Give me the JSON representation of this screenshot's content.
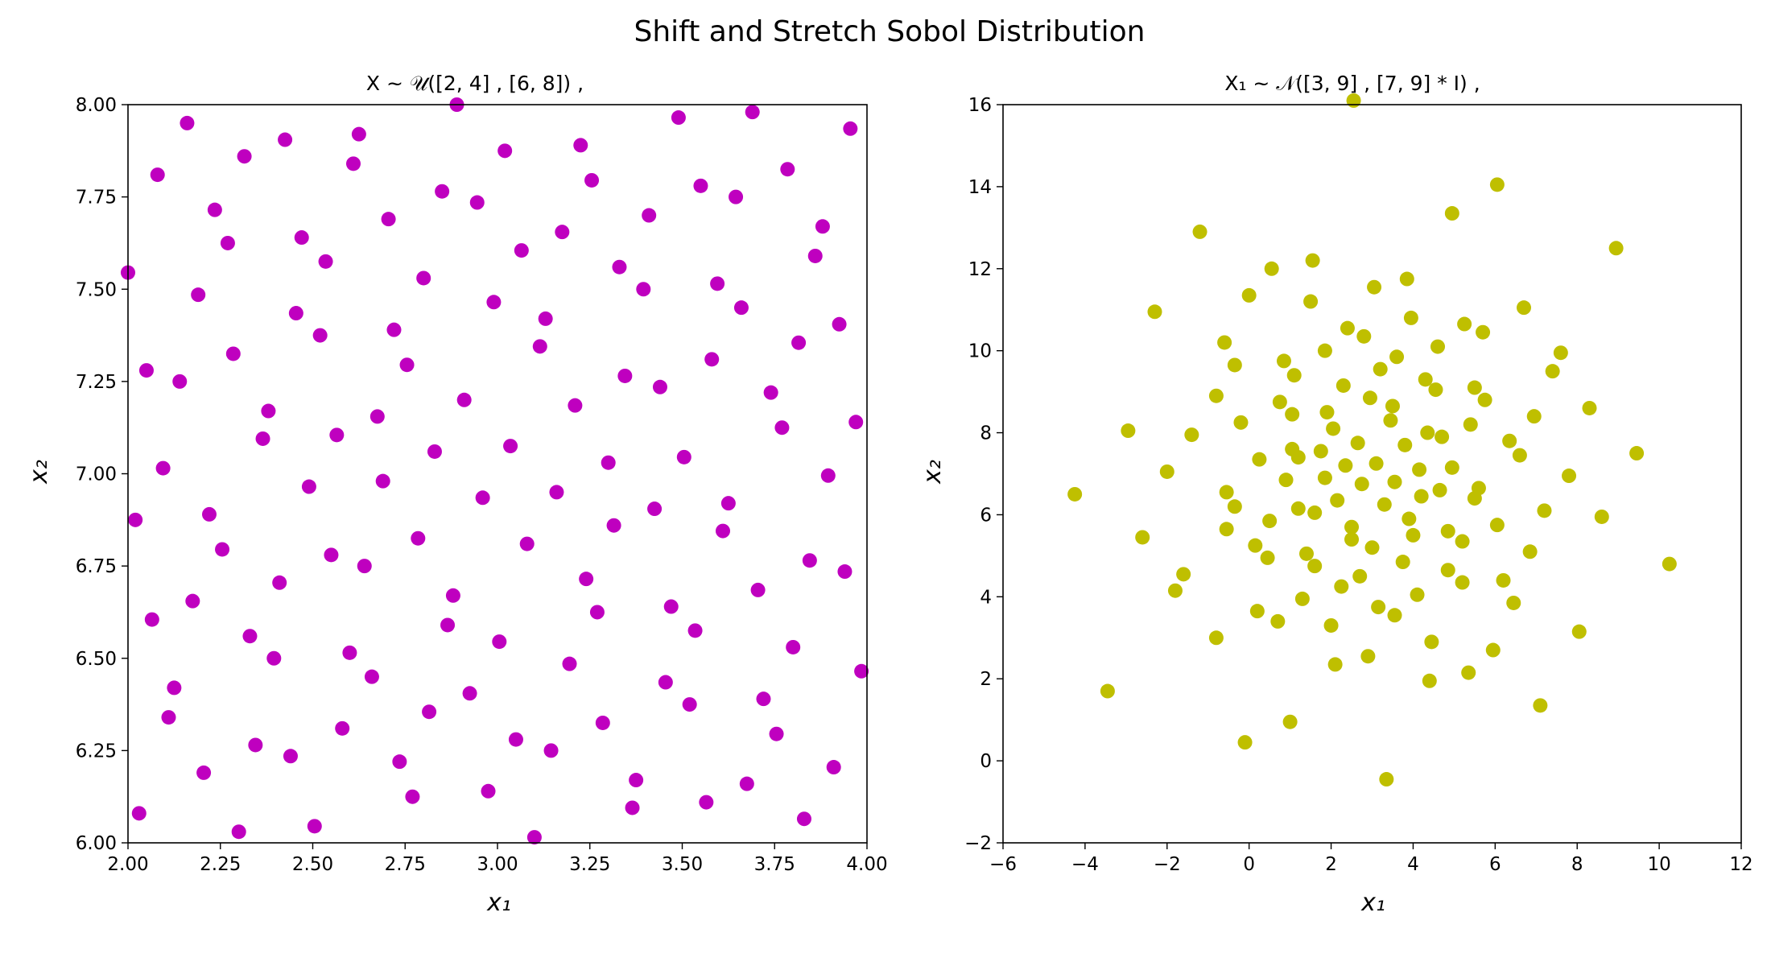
{
  "figure": {
    "suptitle": "Shift and Stretch Sobol Distribution"
  },
  "chart_data": [
    {
      "type": "scatter",
      "title": "X ~ 𝒰([2, 4] , [6, 8])        ,",
      "xlabel": "x₁",
      "ylabel": "x₂",
      "xlim": [
        2.0,
        4.0
      ],
      "ylim": [
        6.0,
        8.0
      ],
      "xticks": [
        "2.00",
        "2.25",
        "2.50",
        "2.75",
        "3.00",
        "3.25",
        "3.50",
        "3.75",
        "4.00"
      ],
      "yticks": [
        "6.00",
        "6.25",
        "6.50",
        "6.75",
        "7.00",
        "7.25",
        "7.50",
        "7.75",
        "8.00"
      ],
      "grid": false,
      "color": "#bf00bf",
      "points": [
        [
          2.0,
          7.545
        ],
        [
          2.02,
          6.875
        ],
        [
          2.03,
          6.08
        ],
        [
          2.05,
          7.28
        ],
        [
          2.065,
          6.605
        ],
        [
          2.08,
          7.81
        ],
        [
          2.095,
          7.015
        ],
        [
          2.11,
          6.34
        ],
        [
          2.125,
          6.42
        ],
        [
          2.14,
          7.25
        ],
        [
          2.16,
          7.95
        ],
        [
          2.175,
          6.655
        ],
        [
          2.19,
          7.485
        ],
        [
          2.205,
          6.19
        ],
        [
          2.22,
          6.89
        ],
        [
          2.235,
          7.715
        ],
        [
          2.255,
          6.795
        ],
        [
          2.27,
          7.625
        ],
        [
          2.285,
          7.325
        ],
        [
          2.3,
          6.03
        ],
        [
          2.315,
          7.86
        ],
        [
          2.33,
          6.56
        ],
        [
          2.345,
          6.265
        ],
        [
          2.365,
          7.095
        ],
        [
          2.38,
          7.17
        ],
        [
          2.395,
          6.5
        ],
        [
          2.41,
          6.705
        ],
        [
          2.425,
          7.905
        ],
        [
          2.44,
          6.235
        ],
        [
          2.455,
          7.435
        ],
        [
          2.47,
          7.64
        ],
        [
          2.49,
          6.965
        ],
        [
          2.505,
          6.045
        ],
        [
          2.52,
          7.375
        ],
        [
          2.535,
          7.575
        ],
        [
          2.55,
          6.78
        ],
        [
          2.565,
          7.105
        ],
        [
          2.58,
          6.31
        ],
        [
          2.6,
          6.515
        ],
        [
          2.61,
          7.84
        ],
        [
          2.625,
          7.92
        ],
        [
          2.64,
          6.75
        ],
        [
          2.66,
          6.45
        ],
        [
          2.675,
          7.155
        ],
        [
          2.69,
          6.98
        ],
        [
          2.705,
          7.69
        ],
        [
          2.72,
          7.39
        ],
        [
          2.735,
          6.22
        ],
        [
          2.755,
          7.295
        ],
        [
          2.77,
          6.125
        ],
        [
          2.785,
          6.825
        ],
        [
          2.8,
          7.53
        ],
        [
          2.815,
          6.355
        ],
        [
          2.83,
          7.06
        ],
        [
          2.85,
          7.765
        ],
        [
          2.865,
          6.59
        ],
        [
          2.88,
          6.67
        ],
        [
          2.89,
          8.0
        ],
        [
          2.91,
          7.2
        ],
        [
          2.925,
          6.405
        ],
        [
          2.945,
          7.735
        ],
        [
          2.96,
          6.935
        ],
        [
          2.975,
          6.14
        ],
        [
          2.99,
          7.465
        ],
        [
          3.005,
          6.545
        ],
        [
          3.02,
          7.875
        ],
        [
          3.035,
          7.075
        ],
        [
          3.05,
          6.28
        ],
        [
          3.065,
          7.605
        ],
        [
          3.08,
          6.81
        ],
        [
          3.1,
          6.015
        ],
        [
          3.115,
          7.345
        ],
        [
          3.13,
          7.42
        ],
        [
          3.145,
          6.25
        ],
        [
          3.16,
          6.95
        ],
        [
          3.175,
          7.655
        ],
        [
          3.195,
          6.485
        ],
        [
          3.21,
          7.185
        ],
        [
          3.225,
          7.89
        ],
        [
          3.24,
          6.715
        ],
        [
          3.255,
          7.795
        ],
        [
          3.27,
          6.625
        ],
        [
          3.285,
          6.325
        ],
        [
          3.3,
          7.03
        ],
        [
          3.315,
          6.86
        ],
        [
          3.33,
          7.56
        ],
        [
          3.345,
          7.265
        ],
        [
          3.365,
          6.095
        ],
        [
          3.375,
          6.17
        ],
        [
          3.395,
          7.5
        ],
        [
          3.41,
          7.7
        ],
        [
          3.425,
          6.905
        ],
        [
          3.44,
          7.235
        ],
        [
          3.455,
          6.435
        ],
        [
          3.47,
          6.64
        ],
        [
          3.49,
          7.965
        ],
        [
          3.505,
          7.045
        ],
        [
          3.52,
          6.375
        ],
        [
          3.535,
          6.575
        ],
        [
          3.55,
          7.78
        ],
        [
          3.565,
          6.11
        ],
        [
          3.58,
          7.31
        ],
        [
          3.595,
          7.515
        ],
        [
          3.61,
          6.845
        ],
        [
          3.625,
          6.92
        ],
        [
          3.645,
          7.75
        ],
        [
          3.66,
          7.45
        ],
        [
          3.675,
          6.16
        ],
        [
          3.69,
          7.98
        ],
        [
          3.705,
          6.685
        ],
        [
          3.72,
          6.39
        ],
        [
          3.74,
          7.22
        ],
        [
          3.755,
          6.295
        ],
        [
          3.77,
          7.125
        ],
        [
          3.785,
          7.825
        ],
        [
          3.8,
          6.53
        ],
        [
          3.815,
          7.355
        ],
        [
          3.83,
          6.065
        ],
        [
          3.845,
          6.765
        ],
        [
          3.86,
          7.59
        ],
        [
          3.88,
          7.67
        ],
        [
          3.895,
          6.995
        ],
        [
          3.91,
          6.205
        ],
        [
          3.925,
          7.405
        ],
        [
          3.94,
          6.735
        ],
        [
          3.955,
          7.935
        ],
        [
          3.97,
          7.14
        ],
        [
          3.985,
          6.465
        ]
      ]
    },
    {
      "type": "scatter",
      "title": "X₁ ~ 𝒩([3, 9] , [7, 9] * I)    ,",
      "xlabel": "x₁",
      "ylabel": "x₂",
      "xlim": [
        -6,
        12
      ],
      "ylim": [
        -2,
        16
      ],
      "xticks": [
        "−6",
        "−4",
        "−2",
        "0",
        "2",
        "4",
        "6",
        "8",
        "10",
        "12"
      ],
      "yticks": [
        "−2",
        "0",
        "2",
        "4",
        "6",
        "8",
        "10",
        "12",
        "14",
        "16"
      ],
      "grid": false,
      "color": "#bfbf00",
      "points": [
        [
          2.55,
          16.1
        ],
        [
          6.05,
          14.05
        ],
        [
          4.95,
          13.35
        ],
        [
          -1.2,
          12.9
        ],
        [
          8.95,
          12.5
        ],
        [
          1.55,
          12.2
        ],
        [
          0.55,
          12.0
        ],
        [
          3.85,
          11.75
        ],
        [
          3.05,
          11.55
        ],
        [
          -2.3,
          10.95
        ],
        [
          0.0,
          11.35
        ],
        [
          1.5,
          11.2
        ],
        [
          6.7,
          11.05
        ],
        [
          3.95,
          10.8
        ],
        [
          5.25,
          10.65
        ],
        [
          2.4,
          10.55
        ],
        [
          5.7,
          10.45
        ],
        [
          2.8,
          10.35
        ],
        [
          -0.6,
          10.2
        ],
        [
          4.6,
          10.1
        ],
        [
          1.85,
          10.0
        ],
        [
          7.6,
          9.95
        ],
        [
          3.6,
          9.85
        ],
        [
          0.85,
          9.75
        ],
        [
          -0.35,
          9.65
        ],
        [
          3.2,
          9.55
        ],
        [
          7.4,
          9.5
        ],
        [
          1.1,
          9.4
        ],
        [
          4.3,
          9.3
        ],
        [
          2.3,
          9.15
        ],
        [
          5.5,
          9.1
        ],
        [
          4.55,
          9.05
        ],
        [
          -0.8,
          8.9
        ],
        [
          2.95,
          8.85
        ],
        [
          5.75,
          8.8
        ],
        [
          0.75,
          8.75
        ],
        [
          3.5,
          8.65
        ],
        [
          8.3,
          8.6
        ],
        [
          1.9,
          8.5
        ],
        [
          1.05,
          8.45
        ],
        [
          6.95,
          8.4
        ],
        [
          3.45,
          8.3
        ],
        [
          -0.2,
          8.25
        ],
        [
          5.4,
          8.2
        ],
        [
          2.05,
          8.1
        ],
        [
          -2.95,
          8.05
        ],
        [
          4.35,
          8.0
        ],
        [
          -1.4,
          7.95
        ],
        [
          4.7,
          7.9
        ],
        [
          6.35,
          7.8
        ],
        [
          2.65,
          7.75
        ],
        [
          3.8,
          7.7
        ],
        [
          1.05,
          7.6
        ],
        [
          1.75,
          7.55
        ],
        [
          9.45,
          7.5
        ],
        [
          6.6,
          7.45
        ],
        [
          1.2,
          7.4
        ],
        [
          0.25,
          7.35
        ],
        [
          3.1,
          7.25
        ],
        [
          2.35,
          7.2
        ],
        [
          4.95,
          7.15
        ],
        [
          4.15,
          7.1
        ],
        [
          -2.0,
          7.05
        ],
        [
          7.8,
          6.95
        ],
        [
          1.85,
          6.9
        ],
        [
          0.9,
          6.85
        ],
        [
          3.55,
          6.8
        ],
        [
          2.75,
          6.75
        ],
        [
          5.6,
          6.65
        ],
        [
          4.65,
          6.6
        ],
        [
          -0.55,
          6.55
        ],
        [
          -4.25,
          6.5
        ],
        [
          4.2,
          6.45
        ],
        [
          5.5,
          6.4
        ],
        [
          2.15,
          6.35
        ],
        [
          3.3,
          6.25
        ],
        [
          -0.35,
          6.2
        ],
        [
          1.2,
          6.15
        ],
        [
          7.2,
          6.1
        ],
        [
          1.6,
          6.05
        ],
        [
          8.6,
          5.95
        ],
        [
          3.9,
          5.9
        ],
        [
          0.5,
          5.85
        ],
        [
          6.05,
          5.75
        ],
        [
          2.5,
          5.7
        ],
        [
          -0.55,
          5.65
        ],
        [
          4.85,
          5.6
        ],
        [
          4.0,
          5.5
        ],
        [
          -2.6,
          5.45
        ],
        [
          2.5,
          5.4
        ],
        [
          5.2,
          5.35
        ],
        [
          0.15,
          5.25
        ],
        [
          3.0,
          5.2
        ],
        [
          6.85,
          5.1
        ],
        [
          1.4,
          5.05
        ],
        [
          0.45,
          4.95
        ],
        [
          3.75,
          4.85
        ],
        [
          10.25,
          4.8
        ],
        [
          1.6,
          4.75
        ],
        [
          4.85,
          4.65
        ],
        [
          -1.6,
          4.55
        ],
        [
          2.7,
          4.5
        ],
        [
          6.2,
          4.4
        ],
        [
          5.2,
          4.35
        ],
        [
          2.25,
          4.25
        ],
        [
          -1.8,
          4.15
        ],
        [
          4.1,
          4.05
        ],
        [
          1.3,
          3.95
        ],
        [
          6.45,
          3.85
        ],
        [
          3.15,
          3.75
        ],
        [
          0.2,
          3.65
        ],
        [
          3.55,
          3.55
        ],
        [
          0.7,
          3.4
        ],
        [
          2.0,
          3.3
        ],
        [
          8.05,
          3.15
        ],
        [
          -0.8,
          3.0
        ],
        [
          4.45,
          2.9
        ],
        [
          5.95,
          2.7
        ],
        [
          2.9,
          2.55
        ],
        [
          2.1,
          2.35
        ],
        [
          5.35,
          2.15
        ],
        [
          4.4,
          1.95
        ],
        [
          -3.45,
          1.7
        ],
        [
          7.1,
          1.35
        ],
        [
          1.0,
          0.95
        ],
        [
          -0.1,
          0.45
        ],
        [
          3.35,
          -0.45
        ]
      ]
    }
  ]
}
